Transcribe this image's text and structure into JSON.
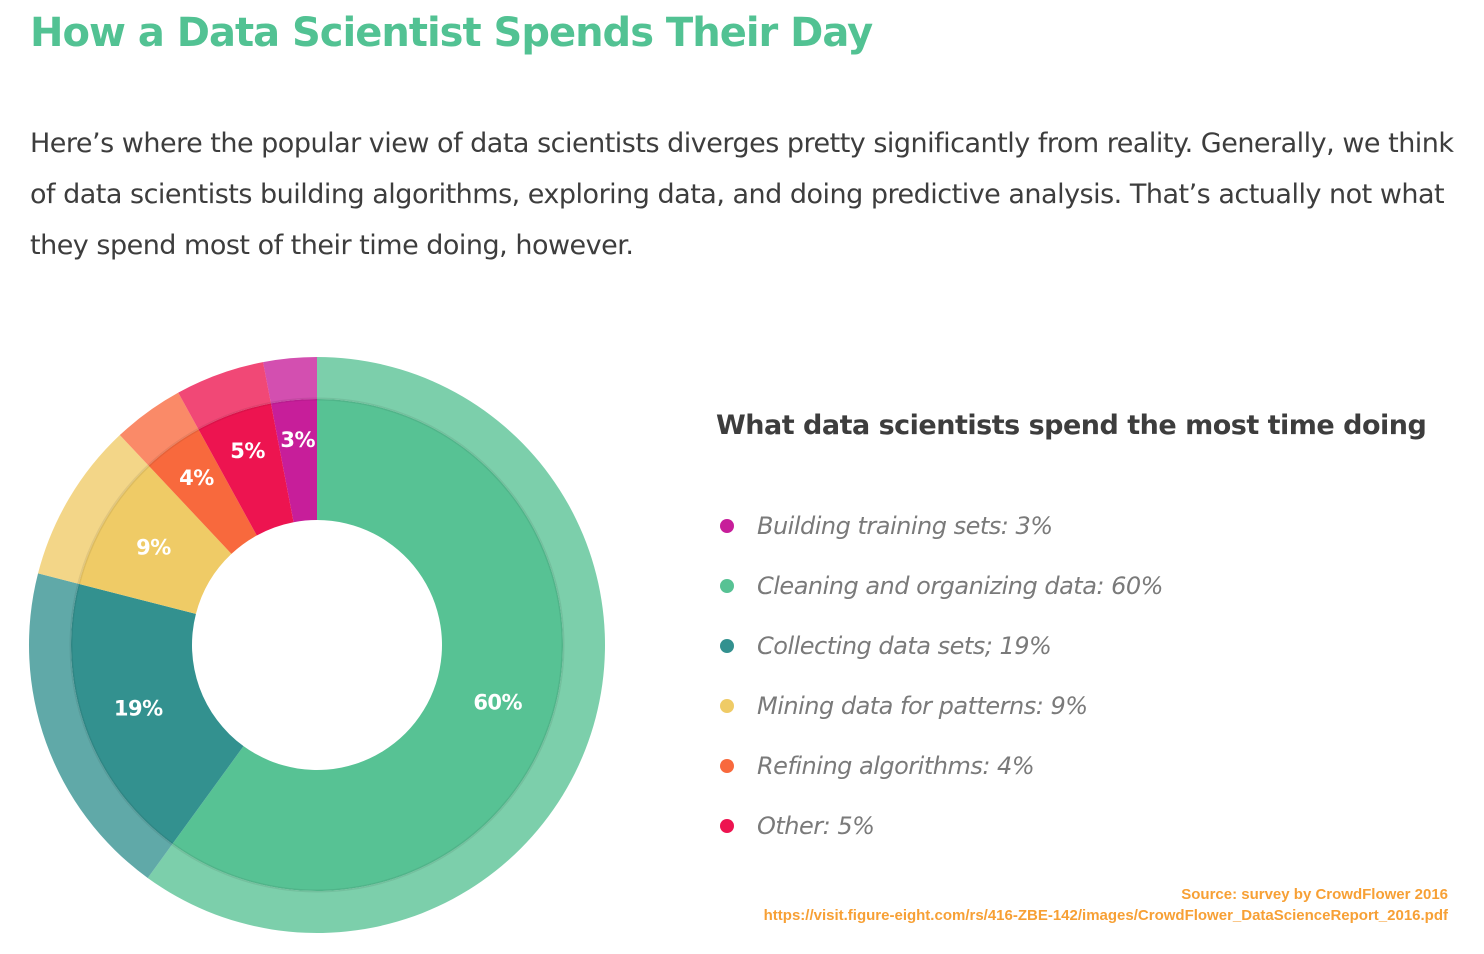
{
  "header": {
    "title": "How a Data Scientist Spends Their Day",
    "intro": "Here’s where the popular view of data scientists diverges pretty significantly from reality. Generally, we think of data scientists building algorithms, exploring data, and doing predictive analysis. That’s actually not what they spend most of their time doing, however."
  },
  "chart_data": {
    "type": "pie",
    "donut": true,
    "title": "What data scientists spend the most time doing",
    "legend_position": "right",
    "slices": [
      {
        "label": "Building training sets",
        "value": 3,
        "value_label": "3%",
        "legend_text": "Building training sets: 3%",
        "color": "#c71e9a"
      },
      {
        "label": "Cleaning and organizing data",
        "value": 60,
        "value_label": "60%",
        "legend_text": "Cleaning and organizing data: 60%",
        "color": "#57c294"
      },
      {
        "label": "Collecting data sets",
        "value": 19,
        "value_label": "19%",
        "legend_text": "Collecting data sets; 19%",
        "color": "#33918f"
      },
      {
        "label": "Mining data for patterns",
        "value": 9,
        "value_label": "9%",
        "legend_text": "Mining data for patterns: 9%",
        "color": "#efcb66"
      },
      {
        "label": "Refining algorithms",
        "value": 4,
        "value_label": "4%",
        "legend_text": "Refining algorithms: 4%",
        "color": "#f8693d"
      },
      {
        "label": "Other",
        "value": 5,
        "value_label": "5%",
        "legend_text": "Other: 5%",
        "color": "#ed1450"
      }
    ]
  },
  "source": {
    "line1": "Source: survey by CrowdFlower 2016",
    "line2": "https://visit.figure-eight.com/rs/416-ZBE-142/images/CrowdFlower_DataScienceReport_2016.pdf"
  }
}
